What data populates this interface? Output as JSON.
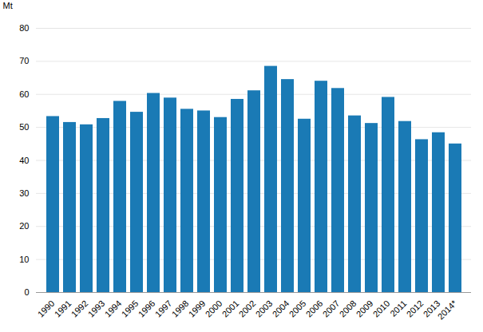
{
  "chart_data": {
    "type": "bar",
    "categories": [
      "1990",
      "1991",
      "1992",
      "1993",
      "1994",
      "1995",
      "1996",
      "1997",
      "1998",
      "1999",
      "2000",
      "2001",
      "2002",
      "2003",
      "2004",
      "2005",
      "2006",
      "2007",
      "2008",
      "2009",
      "2010",
      "2011",
      "2012",
      "2013",
      "2014*"
    ],
    "values": [
      53.3,
      51.5,
      50.8,
      52.7,
      57.9,
      54.6,
      60.3,
      58.9,
      55.5,
      55.0,
      53.0,
      58.5,
      61.1,
      68.5,
      64.5,
      52.5,
      64.0,
      61.8,
      53.5,
      51.2,
      59.1,
      51.8,
      46.3,
      48.4,
      45.0
    ],
    "color": "#1a7ab5",
    "ylabel": "Mt",
    "ylim": [
      0,
      80
    ],
    "yticks": [
      0,
      10,
      20,
      30,
      40,
      50,
      60,
      70,
      80
    ],
    "grid": true
  }
}
